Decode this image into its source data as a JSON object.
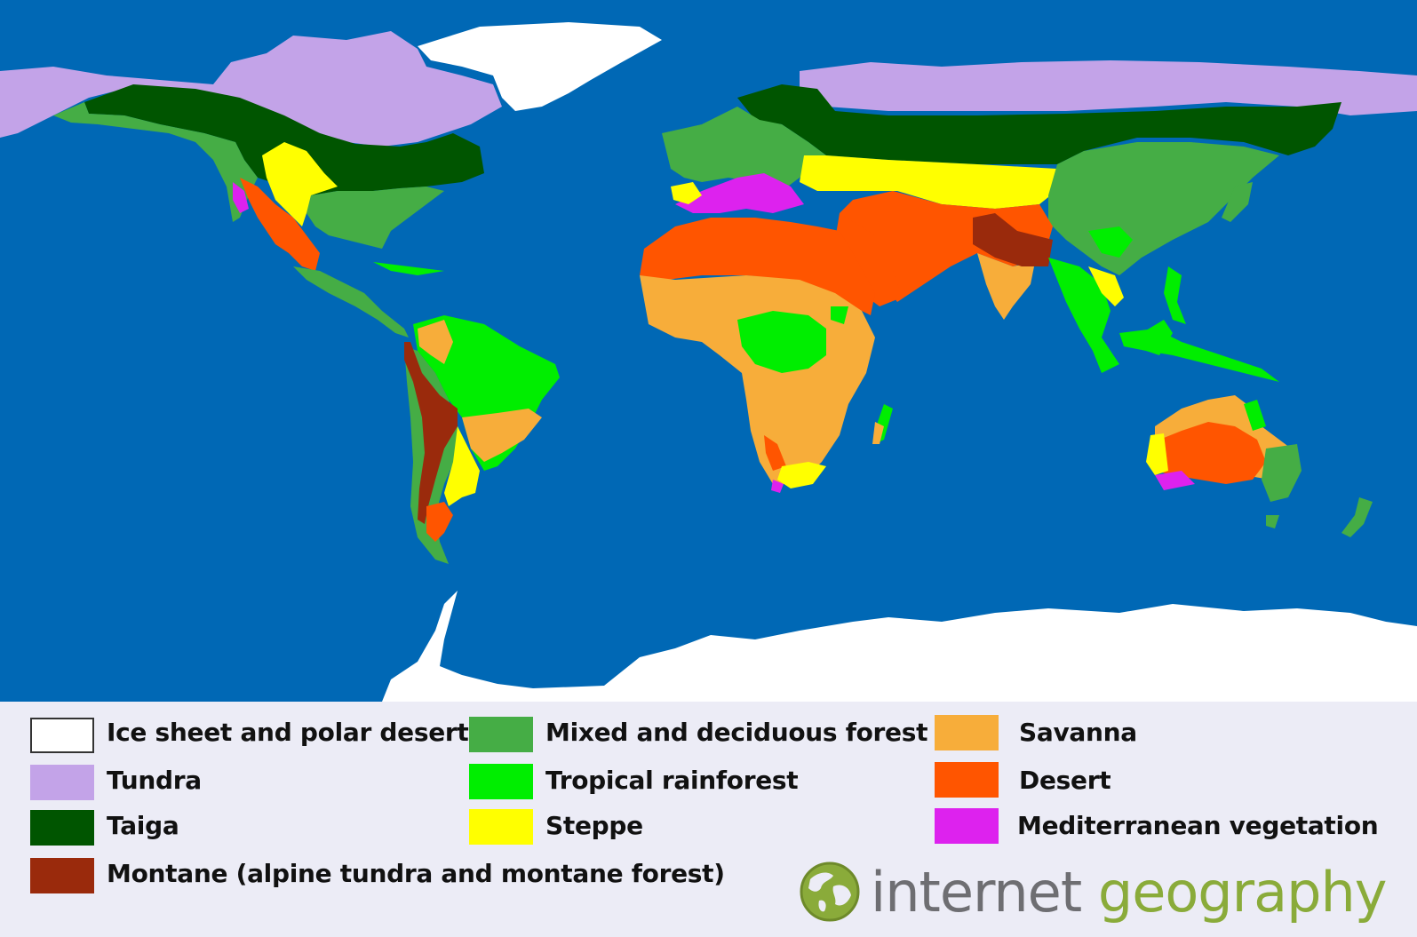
{
  "colors": {
    "ocean": "#0068b5",
    "ice": "#ffffff",
    "tundra": "#c3a3e8",
    "taiga": "#005500",
    "montane": "#9a2a0c",
    "mixed": "#45ad45",
    "rainforest": "#00ee00",
    "steppe": "#ffff00",
    "savanna": "#f7ad3a",
    "desert": "#ff5500",
    "mediterranean": "#dd22ee"
  },
  "legend": [
    {
      "key": "ice",
      "label": "Ice sheet and polar desert",
      "color": "#ffffff"
    },
    {
      "key": "tundra",
      "label": "Tundra",
      "color": "#c3a3e8"
    },
    {
      "key": "taiga",
      "label": "Taiga",
      "color": "#005500"
    },
    {
      "key": "montane",
      "label": "Montane (alpine tundra and montane forest)",
      "color": "#9a2a0c"
    },
    {
      "key": "mixed",
      "label": "Mixed and deciduous forest",
      "color": "#45ad45"
    },
    {
      "key": "rainforest",
      "label": "Tropical rainforest",
      "color": "#00ee00"
    },
    {
      "key": "steppe",
      "label": "Steppe",
      "color": "#ffff00"
    },
    {
      "key": "savanna",
      "label": "Savanna",
      "color": "#f7ad3a"
    },
    {
      "key": "desert",
      "label": "Desert",
      "color": "#ff5500"
    },
    {
      "key": "mediterranean",
      "label": "Mediterranean vegetation",
      "color": "#dd22ee"
    }
  ],
  "brand": {
    "word1": "internet",
    "word2": "geography",
    "icon": "globe-icon"
  }
}
